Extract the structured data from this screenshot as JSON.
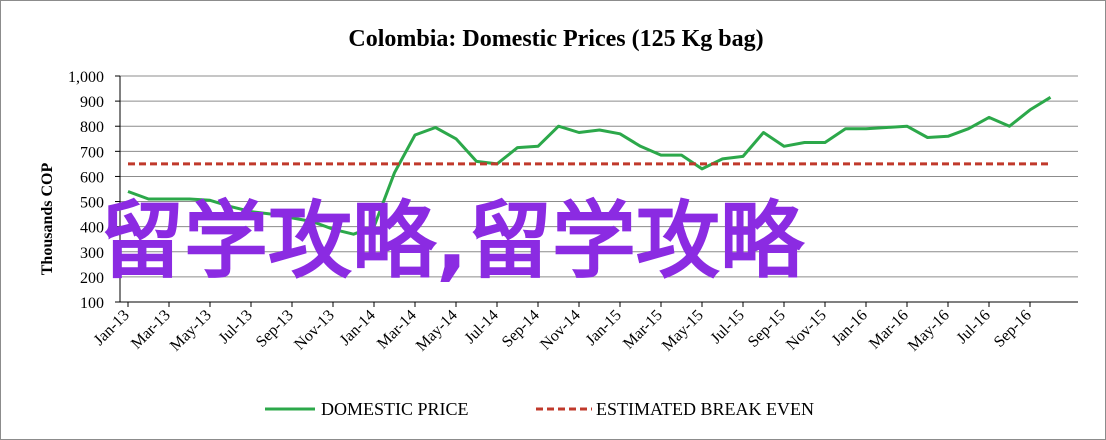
{
  "chart_data": {
    "type": "line",
    "title": "Colombia:  Domestic Prices (125 Kg bag)",
    "ylabel": "Thousands COP",
    "xlabel": "",
    "ylim": [
      100,
      1000
    ],
    "yticks": [
      "100",
      "200",
      "300",
      "400",
      "500",
      "600",
      "700",
      "800",
      "900",
      "1,000"
    ],
    "ytick_values": [
      100,
      200,
      300,
      400,
      500,
      600,
      700,
      800,
      900,
      1000
    ],
    "x_tick_labels": [
      "Jan-13",
      "Mar-13",
      "May-13",
      "Jul-13",
      "Sep-13",
      "Nov-13",
      "Jan-14",
      "Mar-14",
      "May-14",
      "Jul-14",
      "Sep-14",
      "Nov-14",
      "Jan-15",
      "Mar-15",
      "May-15",
      "Jul-15",
      "Sep-15",
      "Nov-15",
      "Jan-16",
      "Mar-16",
      "May-16",
      "Jul-16",
      "Sep-16"
    ],
    "x": [
      "Jan-13",
      "Feb-13",
      "Mar-13",
      "Apr-13",
      "May-13",
      "Jun-13",
      "Jul-13",
      "Aug-13",
      "Sep-13",
      "Oct-13",
      "Nov-13",
      "Dec-13",
      "Jan-14",
      "Feb-14",
      "Mar-14",
      "Apr-14",
      "May-14",
      "Jun-14",
      "Jul-14",
      "Aug-14",
      "Sep-14",
      "Oct-14",
      "Nov-14",
      "Dec-14",
      "Jan-15",
      "Feb-15",
      "Mar-15",
      "Apr-15",
      "May-15",
      "Jun-15",
      "Jul-15",
      "Aug-15",
      "Sep-15",
      "Oct-15",
      "Nov-15",
      "Dec-15",
      "Jan-16",
      "Feb-16",
      "Mar-16",
      "Apr-16",
      "May-16",
      "Jun-16",
      "Jul-16",
      "Aug-16",
      "Sep-16",
      "Oct-16"
    ],
    "series": [
      {
        "name": "DOMESTIC PRICE",
        "color": "#2ca84a",
        "style": "solid",
        "values": [
          540,
          510,
          510,
          510,
          505,
          480,
          460,
          450,
          435,
          420,
          390,
          370,
          400,
          615,
          765,
          795,
          750,
          660,
          650,
          715,
          720,
          800,
          775,
          785,
          770,
          720,
          685,
          685,
          630,
          670,
          680,
          775,
          720,
          735,
          735,
          790,
          790,
          795,
          800,
          755,
          760,
          790,
          835,
          800,
          865,
          915
        ]
      },
      {
        "name": "ESTIMATED BREAK EVEN",
        "color": "#c0392b",
        "style": "dashed",
        "values": [
          650,
          650,
          650,
          650,
          650,
          650,
          650,
          650,
          650,
          650,
          650,
          650,
          650,
          650,
          650,
          650,
          650,
          650,
          650,
          650,
          650,
          650,
          650,
          650,
          650,
          650,
          650,
          650,
          650,
          650,
          650,
          650,
          650,
          650,
          650,
          650,
          650,
          650,
          650,
          650,
          650,
          650,
          650,
          650,
          650,
          650
        ]
      }
    ],
    "grid": true,
    "legend_position": "bottom",
    "watermark": "留学攻略,留学攻略"
  }
}
